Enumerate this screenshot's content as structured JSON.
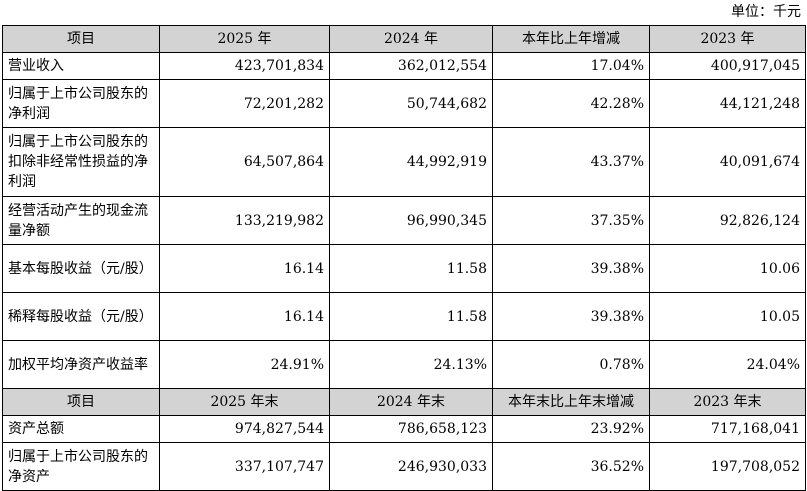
{
  "unit_note": "单位：千元",
  "header1": [
    "项目",
    "2025 年",
    "2024 年",
    "本年比上年增减",
    "2023 年"
  ],
  "rows1": [
    {
      "label": "营业收入",
      "v2025": "423,701,834",
      "v2024": "362,012,554",
      "change": "17.04%",
      "v2023": "400,917,045"
    },
    {
      "label": "归属于上市公司股东的净利润",
      "v2025": "72,201,282",
      "v2024": "50,744,682",
      "change": "42.28%",
      "v2023": "44,121,248"
    },
    {
      "label": "归属于上市公司股东的扣除非经常性损益的净利润",
      "v2025": "64,507,864",
      "v2024": "44,992,919",
      "change": "43.37%",
      "v2023": "40,091,674"
    },
    {
      "label": "经营活动产生的现金流量净额",
      "v2025": "133,219,982",
      "v2024": "96,990,345",
      "change": "37.35%",
      "v2023": "92,826,124"
    },
    {
      "label": "基本每股收益（元/股）",
      "v2025": "16.14",
      "v2024": "11.58",
      "change": "39.38%",
      "v2023": "10.06"
    },
    {
      "label": "稀释每股收益（元/股）",
      "v2025": "16.14",
      "v2024": "11.58",
      "change": "39.38%",
      "v2023": "10.05"
    },
    {
      "label": "加权平均净资产收益率",
      "v2025": "24.91%",
      "v2024": "24.13%",
      "change": "0.78%",
      "v2023": "24.04%"
    }
  ],
  "header2": [
    "项目",
    "2025 年末",
    "2024 年末",
    "本年末比上年末增减",
    "2023 年末"
  ],
  "rows2": [
    {
      "label": "资产总额",
      "v2025": "974,827,544",
      "v2024": "786,658,123",
      "change": "23.92%",
      "v2023": "717,168,041"
    },
    {
      "label": "归属于上市公司股东的净资产",
      "v2025": "337,107,747",
      "v2024": "246,930,033",
      "change": "36.52%",
      "v2023": "197,708,052"
    }
  ]
}
